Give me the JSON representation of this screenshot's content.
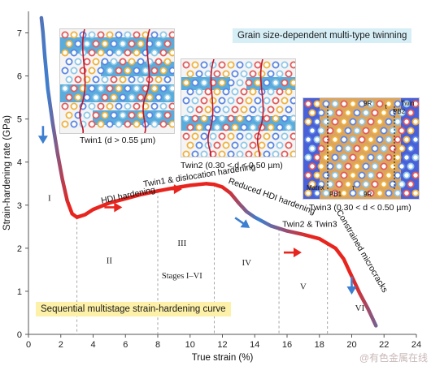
{
  "title_box": "Grain size-dependent multi-type twinning",
  "curve_box": "Sequential multistage strain-hardening curve",
  "watermark": "@有色金属在线",
  "insets": [
    {
      "caption": "Twin1 (d > 0.55 µm)"
    },
    {
      "caption": "Twin2 (0.30 < d < 0.50 µm)"
    },
    {
      "caption": "Twin3 (0.30 < d < 0.50 µm)",
      "labels": [
        "9R",
        "Twin",
        "PB2",
        "Matrix",
        "PB1",
        "9R",
        "τ",
        "τ"
      ]
    }
  ],
  "chart_data": {
    "type": "line",
    "xlabel": "True strain (%)",
    "ylabel": "Strain-hardening rate (GPa)",
    "xlim": [
      0,
      24
    ],
    "ylim": [
      0,
      7.5
    ],
    "xticks": [
      0,
      2,
      4,
      6,
      8,
      10,
      12,
      14,
      16,
      18,
      20,
      22,
      24
    ],
    "yticks": [
      0,
      1,
      2,
      3,
      4,
      5,
      6,
      7
    ],
    "series": [
      {
        "x": [
          0.8,
          0.9,
          1.0,
          1.2,
          1.5,
          1.8,
          2.1,
          2.4,
          2.7,
          3.0,
          3.5,
          4.0,
          5.0,
          6.0,
          7.0,
          8.0,
          9.0,
          10.0,
          11.0,
          11.5,
          12.0,
          12.5,
          13.0,
          13.5,
          14.0,
          15.0,
          16.0,
          17.0,
          18.0,
          19.0,
          19.5,
          20.0,
          20.5,
          21.0,
          21.5
        ],
        "y": [
          7.35,
          7.0,
          6.5,
          5.7,
          4.9,
          4.2,
          3.6,
          3.1,
          2.8,
          2.72,
          2.78,
          2.9,
          3.05,
          3.15,
          3.25,
          3.33,
          3.4,
          3.46,
          3.5,
          3.48,
          3.42,
          3.28,
          3.05,
          2.85,
          2.72,
          2.52,
          2.4,
          2.32,
          2.22,
          2.0,
          1.75,
          1.35,
          0.95,
          0.6,
          0.2
        ]
      }
    ],
    "stage_dividers": [
      3.0,
      8.0,
      11.5,
      15.5,
      18.5
    ],
    "stage_labels": [
      {
        "text": "I",
        "x": 1.3,
        "y": 3.1
      },
      {
        "text": "II",
        "x": 5.0,
        "y": 1.65
      },
      {
        "text": "III",
        "x": 9.5,
        "y": 2.05
      },
      {
        "text": "IV",
        "x": 13.5,
        "y": 1.6
      },
      {
        "text": "V",
        "x": 17.0,
        "y": 1.05
      },
      {
        "text": "VI",
        "x": 20.5,
        "y": 0.55
      },
      {
        "text": "Stages I–VI",
        "x": 9.5,
        "y": 1.3
      }
    ],
    "annotations": [
      {
        "text": "HDI hardening",
        "x": 6.2,
        "y": 3.17,
        "angle": -12
      },
      {
        "text": "Twin1 & dislocation hardening",
        "x": 10.6,
        "y": 3.63,
        "angle": -9
      },
      {
        "text": "Reduced HDI hardening",
        "x": 15.0,
        "y": 3.15,
        "angle": 20
      },
      {
        "text": "Twin2 & Twin3",
        "x": 17.4,
        "y": 2.5,
        "angle": 0
      },
      {
        "text": "Constrained microcracks",
        "x": 20.5,
        "y": 1.9,
        "angle": 60
      }
    ],
    "arrows": [
      {
        "x": 0.9,
        "y": 4.65,
        "dir": "down",
        "color": "#3d7fd0"
      },
      {
        "x": 5.2,
        "y": 2.95,
        "dir": "right",
        "color": "#e8241e"
      },
      {
        "x": 8.9,
        "y": 3.37,
        "dir": "right",
        "color": "#e8241e"
      },
      {
        "x": 13.2,
        "y": 2.6,
        "dir": "down-right",
        "color": "#3d7fd0"
      },
      {
        "x": 16.3,
        "y": 1.9,
        "dir": "right",
        "color": "#e8241e"
      },
      {
        "x": 20.0,
        "y": 1.15,
        "dir": "down",
        "color": "#3d7fd0"
      }
    ]
  }
}
